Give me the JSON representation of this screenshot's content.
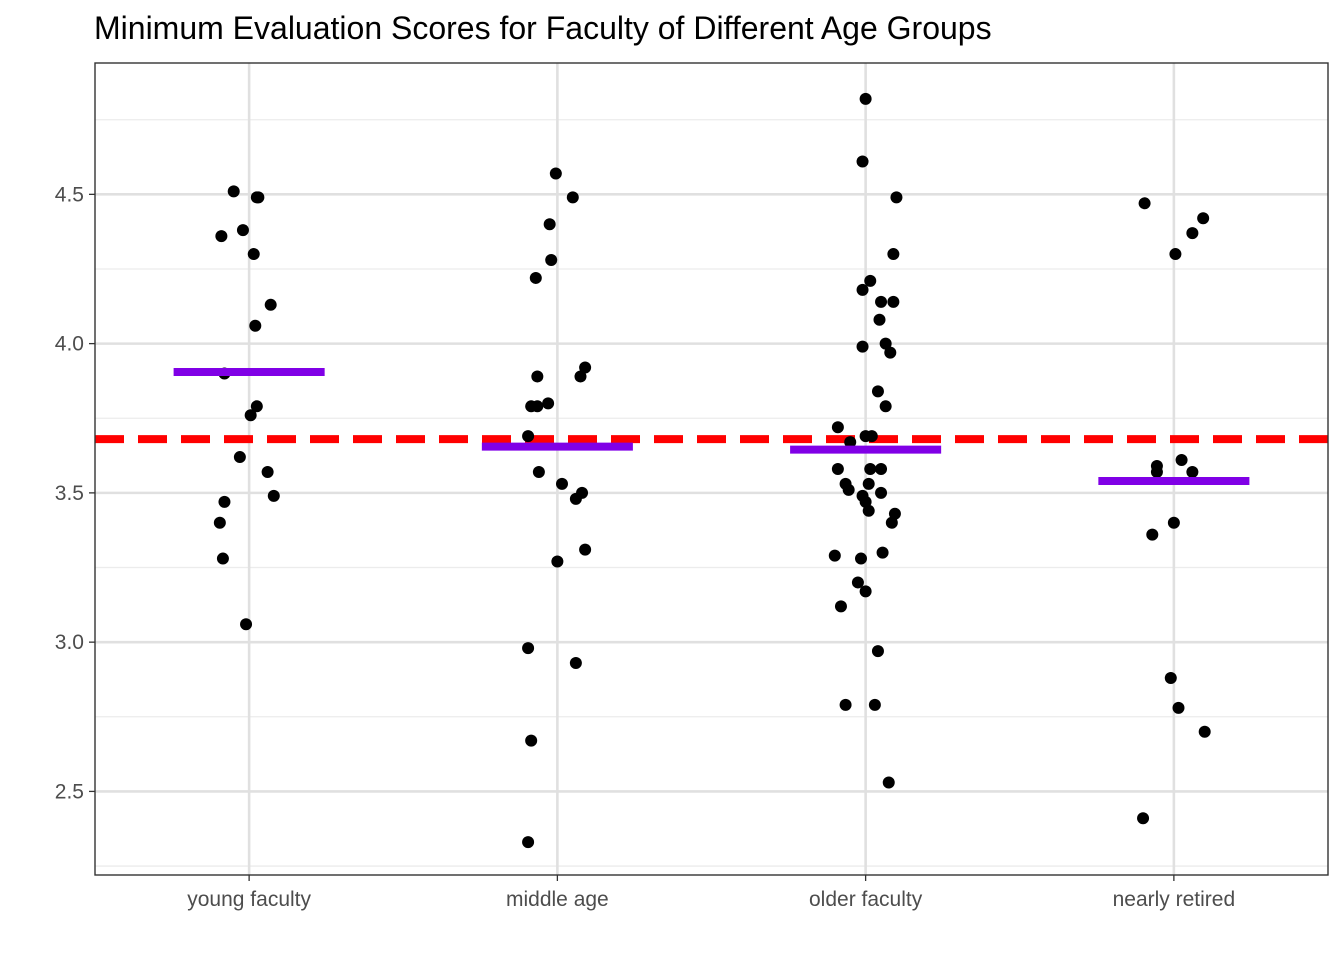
{
  "chart_data": {
    "type": "scatter",
    "title": "Minimum Evaluation Scores for Faculty of Different Age Groups",
    "xlabel": "",
    "ylabel": "",
    "categories": [
      "young faculty",
      "middle age",
      "older faculty",
      "nearly retired"
    ],
    "ylim": [
      2.22,
      4.94
    ],
    "y_ticks": [
      {
        "value": 2.5,
        "label": "2.5"
      },
      {
        "value": 3.0,
        "label": "3.0"
      },
      {
        "value": 3.5,
        "label": "3.5"
      },
      {
        "value": 4.0,
        "label": "4.0"
      },
      {
        "value": 4.5,
        "label": "4.5"
      }
    ],
    "grid": true,
    "reference_line": {
      "y": 3.68,
      "style": "dashed",
      "color": "#ff0000"
    },
    "group_means": [
      {
        "category": "young faculty",
        "y": 3.905
      },
      {
        "category": "middle age",
        "y": 3.655
      },
      {
        "category": "older faculty",
        "y": 3.645
      },
      {
        "category": "nearly retired",
        "y": 3.54
      }
    ],
    "mean_color": "#8000e6",
    "point_color": "#000000",
    "points": [
      {
        "category": "young faculty",
        "jitter": -0.05,
        "y": 4.51
      },
      {
        "category": "young faculty",
        "jitter": 0.03,
        "y": 4.49
      },
      {
        "category": "young faculty",
        "jitter": 0.025,
        "y": 4.49
      },
      {
        "category": "young faculty",
        "jitter": -0.09,
        "y": 4.36
      },
      {
        "category": "young faculty",
        "jitter": -0.02,
        "y": 4.38
      },
      {
        "category": "young faculty",
        "jitter": 0.015,
        "y": 4.3
      },
      {
        "category": "young faculty",
        "jitter": 0.07,
        "y": 4.13
      },
      {
        "category": "young faculty",
        "jitter": 0.02,
        "y": 4.06
      },
      {
        "category": "young faculty",
        "jitter": -0.08,
        "y": 3.9
      },
      {
        "category": "young faculty",
        "jitter": 0.025,
        "y": 3.79
      },
      {
        "category": "young faculty",
        "jitter": 0.005,
        "y": 3.76
      },
      {
        "category": "young faculty",
        "jitter": -0.03,
        "y": 3.62
      },
      {
        "category": "young faculty",
        "jitter": 0.06,
        "y": 3.57
      },
      {
        "category": "young faculty",
        "jitter": 0.08,
        "y": 3.49
      },
      {
        "category": "young faculty",
        "jitter": -0.08,
        "y": 3.47
      },
      {
        "category": "young faculty",
        "jitter": -0.095,
        "y": 3.4
      },
      {
        "category": "young faculty",
        "jitter": -0.085,
        "y": 3.28
      },
      {
        "category": "young faculty",
        "jitter": -0.01,
        "y": 3.06
      },
      {
        "category": "middle age",
        "jitter": -0.005,
        "y": 4.57
      },
      {
        "category": "middle age",
        "jitter": 0.05,
        "y": 4.49
      },
      {
        "category": "middle age",
        "jitter": -0.025,
        "y": 4.4
      },
      {
        "category": "middle age",
        "jitter": -0.02,
        "y": 4.28
      },
      {
        "category": "middle age",
        "jitter": -0.07,
        "y": 4.22
      },
      {
        "category": "middle age",
        "jitter": 0.09,
        "y": 3.92
      },
      {
        "category": "middle age",
        "jitter": 0.075,
        "y": 3.89
      },
      {
        "category": "middle age",
        "jitter": -0.065,
        "y": 3.89
      },
      {
        "category": "middle age",
        "jitter": -0.085,
        "y": 3.79
      },
      {
        "category": "middle age",
        "jitter": -0.065,
        "y": 3.79
      },
      {
        "category": "middle age",
        "jitter": -0.03,
        "y": 3.8
      },
      {
        "category": "middle age",
        "jitter": -0.095,
        "y": 3.69
      },
      {
        "category": "middle age",
        "jitter": -0.06,
        "y": 3.57
      },
      {
        "category": "middle age",
        "jitter": 0.015,
        "y": 3.53
      },
      {
        "category": "middle age",
        "jitter": 0.08,
        "y": 3.5
      },
      {
        "category": "middle age",
        "jitter": 0.06,
        "y": 3.48
      },
      {
        "category": "middle age",
        "jitter": 0.09,
        "y": 3.31
      },
      {
        "category": "middle age",
        "jitter": 0.0,
        "y": 3.27
      },
      {
        "category": "middle age",
        "jitter": -0.095,
        "y": 2.98
      },
      {
        "category": "middle age",
        "jitter": 0.06,
        "y": 2.93
      },
      {
        "category": "middle age",
        "jitter": -0.085,
        "y": 2.67
      },
      {
        "category": "middle age",
        "jitter": -0.095,
        "y": 2.33
      },
      {
        "category": "older faculty",
        "jitter": 0.0,
        "y": 4.82
      },
      {
        "category": "older faculty",
        "jitter": -0.01,
        "y": 4.61
      },
      {
        "category": "older faculty",
        "jitter": 0.1,
        "y": 4.49
      },
      {
        "category": "older faculty",
        "jitter": 0.09,
        "y": 4.3
      },
      {
        "category": "older faculty",
        "jitter": 0.015,
        "y": 4.21
      },
      {
        "category": "older faculty",
        "jitter": -0.01,
        "y": 4.18
      },
      {
        "category": "older faculty",
        "jitter": 0.05,
        "y": 4.14
      },
      {
        "category": "older faculty",
        "jitter": 0.09,
        "y": 4.14
      },
      {
        "category": "older faculty",
        "jitter": 0.045,
        "y": 4.08
      },
      {
        "category": "older faculty",
        "jitter": -0.01,
        "y": 3.99
      },
      {
        "category": "older faculty",
        "jitter": 0.065,
        "y": 4.0
      },
      {
        "category": "older faculty",
        "jitter": 0.08,
        "y": 3.97
      },
      {
        "category": "older faculty",
        "jitter": 0.04,
        "y": 3.84
      },
      {
        "category": "older faculty",
        "jitter": 0.065,
        "y": 3.79
      },
      {
        "category": "older faculty",
        "jitter": -0.09,
        "y": 3.72
      },
      {
        "category": "older faculty",
        "jitter": 0.0,
        "y": 3.69
      },
      {
        "category": "older faculty",
        "jitter": 0.02,
        "y": 3.69
      },
      {
        "category": "older faculty",
        "jitter": -0.05,
        "y": 3.67
      },
      {
        "category": "older faculty",
        "jitter": -0.09,
        "y": 3.58
      },
      {
        "category": "older faculty",
        "jitter": 0.015,
        "y": 3.58
      },
      {
        "category": "older faculty",
        "jitter": 0.05,
        "y": 3.58
      },
      {
        "category": "older faculty",
        "jitter": -0.065,
        "y": 3.53
      },
      {
        "category": "older faculty",
        "jitter": 0.01,
        "y": 3.53
      },
      {
        "category": "older faculty",
        "jitter": -0.055,
        "y": 3.51
      },
      {
        "category": "older faculty",
        "jitter": -0.01,
        "y": 3.49
      },
      {
        "category": "older faculty",
        "jitter": 0.05,
        "y": 3.5
      },
      {
        "category": "older faculty",
        "jitter": 0.0,
        "y": 3.47
      },
      {
        "category": "older faculty",
        "jitter": 0.01,
        "y": 3.44
      },
      {
        "category": "older faculty",
        "jitter": 0.095,
        "y": 3.43
      },
      {
        "category": "older faculty",
        "jitter": 0.085,
        "y": 3.4
      },
      {
        "category": "older faculty",
        "jitter": -0.1,
        "y": 3.29
      },
      {
        "category": "older faculty",
        "jitter": 0.055,
        "y": 3.3
      },
      {
        "category": "older faculty",
        "jitter": -0.015,
        "y": 3.28
      },
      {
        "category": "older faculty",
        "jitter": -0.025,
        "y": 3.2
      },
      {
        "category": "older faculty",
        "jitter": 0.0,
        "y": 3.17
      },
      {
        "category": "older faculty",
        "jitter": -0.08,
        "y": 3.12
      },
      {
        "category": "older faculty",
        "jitter": 0.04,
        "y": 2.97
      },
      {
        "category": "older faculty",
        "jitter": -0.065,
        "y": 2.79
      },
      {
        "category": "older faculty",
        "jitter": 0.03,
        "y": 2.79
      },
      {
        "category": "older faculty",
        "jitter": 0.075,
        "y": 2.53
      },
      {
        "category": "nearly retired",
        "jitter": -0.095,
        "y": 4.47
      },
      {
        "category": "nearly retired",
        "jitter": 0.095,
        "y": 4.42
      },
      {
        "category": "nearly retired",
        "jitter": 0.06,
        "y": 4.37
      },
      {
        "category": "nearly retired",
        "jitter": 0.005,
        "y": 4.3
      },
      {
        "category": "nearly retired",
        "jitter": -0.055,
        "y": 3.59
      },
      {
        "category": "nearly retired",
        "jitter": 0.025,
        "y": 3.61
      },
      {
        "category": "nearly retired",
        "jitter": -0.055,
        "y": 3.57
      },
      {
        "category": "nearly retired",
        "jitter": 0.06,
        "y": 3.57
      },
      {
        "category": "nearly retired",
        "jitter": 0.0,
        "y": 3.4
      },
      {
        "category": "nearly retired",
        "jitter": -0.07,
        "y": 3.36
      },
      {
        "category": "nearly retired",
        "jitter": -0.01,
        "y": 2.88
      },
      {
        "category": "nearly retired",
        "jitter": 0.015,
        "y": 2.78
      },
      {
        "category": "nearly retired",
        "jitter": 0.1,
        "y": 2.7
      },
      {
        "category": "nearly retired",
        "jitter": -0.1,
        "y": 2.41
      }
    ]
  }
}
